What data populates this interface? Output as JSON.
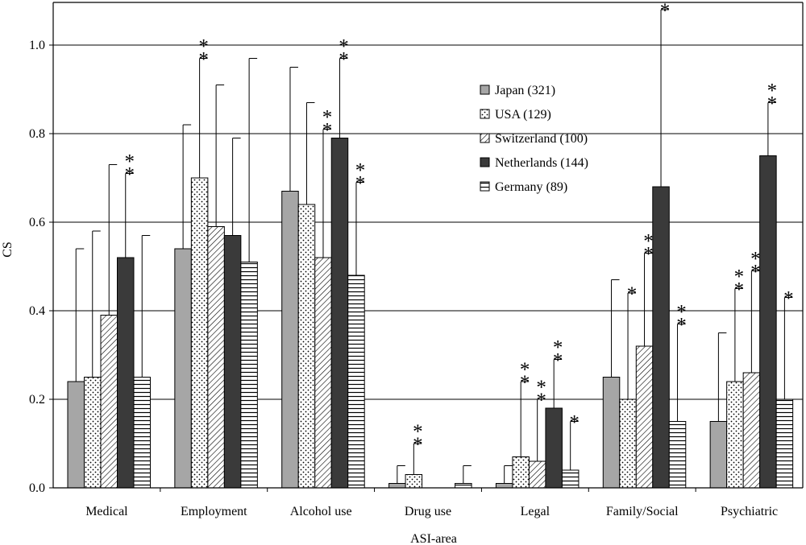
{
  "chart_data": {
    "type": "bar",
    "title": "",
    "xlabel": "ASI-area",
    "ylabel": "CS",
    "ylim": [
      0,
      1.0
    ],
    "yticks": [
      "0.0",
      "0.2",
      "0.4",
      "0.6",
      "0.8",
      "1.0"
    ],
    "grid": true,
    "legend_position": "top-right",
    "categories": [
      "Medical",
      "Employment",
      "Alcohol use",
      "Drug use",
      "Legal",
      "Family/Social",
      "Psychiatric"
    ],
    "series": [
      {
        "name": "Japan (321)",
        "pattern": "gray",
        "values": [
          0.24,
          0.54,
          0.67,
          0.01,
          0.01,
          0.25,
          0.15
        ],
        "error": [
          0.3,
          0.28,
          0.28,
          0.04,
          0.04,
          0.22,
          0.2
        ],
        "significance": [
          "",
          "",
          "",
          "",
          "",
          "",
          ""
        ]
      },
      {
        "name": "USA (129)",
        "pattern": "dots",
        "values": [
          0.25,
          0.7,
          0.64,
          0.03,
          0.07,
          0.2,
          0.24
        ],
        "error": [
          0.33,
          0.27,
          0.23,
          0.07,
          0.17,
          0.24,
          0.21
        ],
        "significance": [
          "",
          "**",
          "",
          "**",
          "**",
          "*",
          "**"
        ]
      },
      {
        "name": "Switzerland (100)",
        "pattern": "diagonal",
        "values": [
          0.39,
          0.59,
          0.52,
          0.0,
          0.06,
          0.32,
          0.26
        ],
        "error": [
          0.34,
          0.32,
          0.29,
          0.0,
          0.14,
          0.21,
          0.23
        ],
        "significance": [
          "",
          "",
          "**",
          "",
          "**",
          "**",
          "**"
        ]
      },
      {
        "name": "Netherlands (144)",
        "pattern": "dark",
        "values": [
          0.52,
          0.57,
          0.79,
          0.0,
          0.18,
          0.68,
          0.75
        ],
        "error": [
          0.19,
          0.22,
          0.18,
          0.0,
          0.11,
          0.4,
          0.12
        ],
        "significance": [
          "**",
          "",
          "**",
          "",
          "**",
          "**",
          "**"
        ]
      },
      {
        "name": "Germany (89)",
        "pattern": "horizontal",
        "values": [
          0.25,
          0.51,
          0.48,
          0.01,
          0.04,
          0.15,
          0.2
        ],
        "error": [
          0.32,
          0.46,
          0.21,
          0.04,
          0.11,
          0.22,
          0.23
        ],
        "significance": [
          "",
          "",
          "**",
          "",
          "*",
          "**",
          "*"
        ]
      }
    ]
  }
}
